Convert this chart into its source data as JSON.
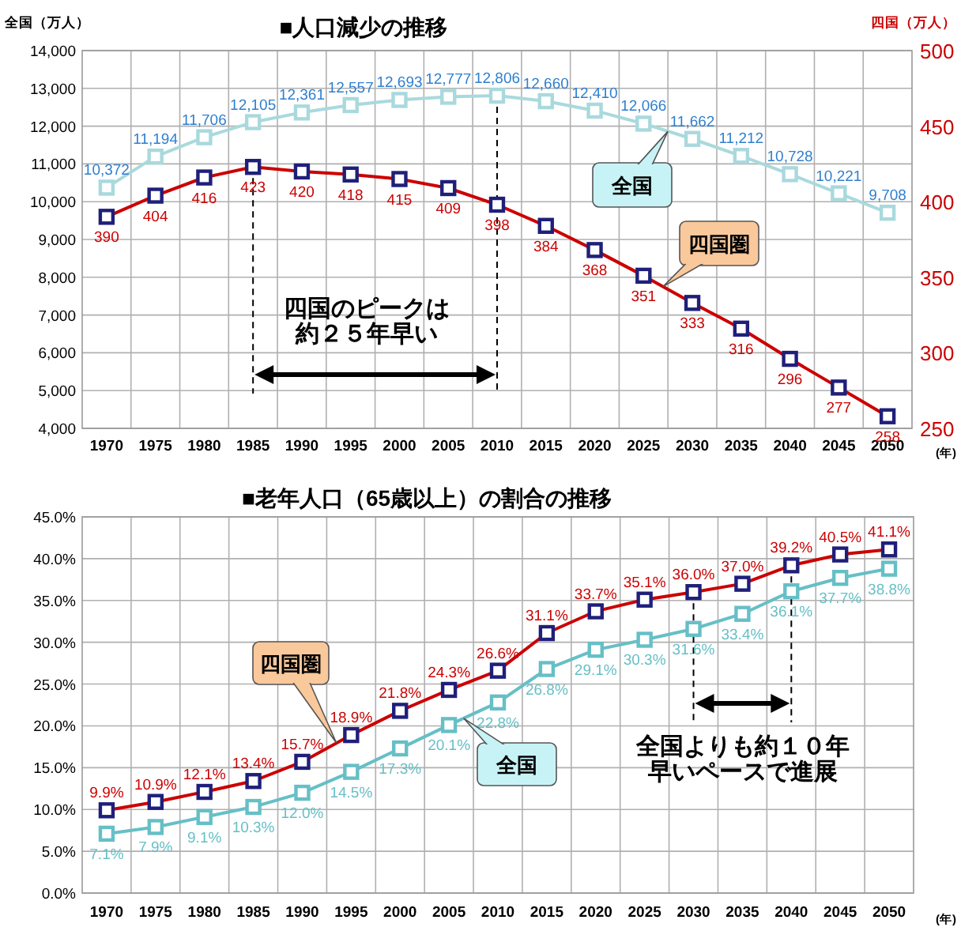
{
  "chart_data": [
    {
      "type": "line",
      "title": "■人口減少の推移",
      "ylabel": "全国（万人）",
      "y2label": "四国（万人）",
      "xlabel": "(年)",
      "categories": [
        "1970",
        "1975",
        "1980",
        "1985",
        "1990",
        "1995",
        "2000",
        "2005",
        "2010",
        "2015",
        "2020",
        "2025",
        "2030",
        "2035",
        "2040",
        "2045",
        "2050"
      ],
      "ylim": [
        4000,
        14000
      ],
      "yticks": [
        {
          "value": 4000,
          "label": "4,000"
        },
        {
          "value": 5000,
          "label": "5,000"
        },
        {
          "value": 6000,
          "label": "6,000"
        },
        {
          "value": 7000,
          "label": "7,000"
        },
        {
          "value": 8000,
          "label": "8,000"
        },
        {
          "value": 9000,
          "label": "9,000"
        },
        {
          "value": 10000,
          "label": "10,000"
        },
        {
          "value": 11000,
          "label": "11,000"
        },
        {
          "value": 12000,
          "label": "12,000"
        },
        {
          "value": 13000,
          "label": "13,000"
        },
        {
          "value": 14000,
          "label": "14,000"
        }
      ],
      "y2lim": [
        250,
        500
      ],
      "y2ticks": [
        250,
        300,
        350,
        400,
        450,
        500
      ],
      "grid": true,
      "marker": "square",
      "series": [
        {
          "name": "全国",
          "color": "#a9d9dd",
          "values": [
            10372,
            11194,
            11706,
            12105,
            12361,
            12557,
            12693,
            12777,
            12806,
            12660,
            12410,
            12066,
            11662,
            11212,
            10728,
            10221,
            9708
          ],
          "value_labels": [
            "10,372",
            "11,194",
            "11,706",
            "12,105",
            "12,361",
            "12,557",
            "12,693",
            "12,777",
            "12,806",
            "12,660",
            "12,410",
            "12,066",
            "11,662",
            "11,212",
            "10,728",
            "10,221",
            "9,708"
          ]
        },
        {
          "name": "四国圏",
          "color": "#cc0000",
          "axis": "y2",
          "values": [
            390,
            404,
            416,
            423,
            420,
            418,
            415,
            409,
            398,
            384,
            368,
            351,
            333,
            316,
            296,
            277,
            258
          ],
          "value_labels": [
            "390",
            "404",
            "416",
            "423",
            "420",
            "418",
            "415",
            "409",
            "398",
            "384",
            "368",
            "351",
            "333",
            "316",
            "296",
            "277",
            "258"
          ]
        }
      ],
      "ref_lines": [
        {
          "axis": "x",
          "value": "1985",
          "color": "#000000",
          "line_style": "dashed"
        },
        {
          "axis": "x",
          "value": "2010",
          "color": "#000000",
          "line_style": "dashed"
        }
      ],
      "annotations": [
        "四国のピークは",
        "約２５年早い"
      ]
    },
    {
      "type": "line",
      "title": "■老年人口（65歳以上）の割合の推移",
      "xlabel": "(年)",
      "categories": [
        "1970",
        "1975",
        "1980",
        "1985",
        "1990",
        "1995",
        "2000",
        "2005",
        "2010",
        "2015",
        "2020",
        "2025",
        "2030",
        "2035",
        "2040",
        "2045",
        "2050"
      ],
      "ylim": [
        0,
        45
      ],
      "yticks": [
        {
          "value": 0,
          "label": "0.0%"
        },
        {
          "value": 5,
          "label": "5.0%"
        },
        {
          "value": 10,
          "label": "10.0%"
        },
        {
          "value": 15,
          "label": "15.0%"
        },
        {
          "value": 20,
          "label": "20.0%"
        },
        {
          "value": 25,
          "label": "25.0%"
        },
        {
          "value": 30,
          "label": "30.0%"
        },
        {
          "value": 35,
          "label": "35.0%"
        },
        {
          "value": 40,
          "label": "40.0%"
        },
        {
          "value": 45,
          "label": "45.0%"
        }
      ],
      "grid": true,
      "marker": "square",
      "series": [
        {
          "name": "全国",
          "color": "#66bfc6",
          "values": [
            7.1,
            7.9,
            9.1,
            10.3,
            12.0,
            14.5,
            17.3,
            20.1,
            22.8,
            26.8,
            29.1,
            30.3,
            31.6,
            33.4,
            36.1,
            37.7,
            38.8
          ],
          "value_labels": [
            "7.1%",
            "7.9%",
            "9.1%",
            "10.3%",
            "12.0%",
            "14.5%",
            "17.3%",
            "20.1%",
            "22.8%",
            "26.8%",
            "29.1%",
            "30.3%",
            "31.6%",
            "33.4%",
            "36.1%",
            "37.7%",
            "38.8%"
          ]
        },
        {
          "name": "四国圏",
          "color": "#cc0000",
          "values": [
            9.9,
            10.9,
            12.1,
            13.4,
            15.7,
            18.9,
            21.8,
            24.3,
            26.6,
            31.1,
            33.7,
            35.1,
            36.0,
            37.0,
            39.2,
            40.5,
            41.1
          ],
          "value_labels": [
            "9.9%",
            "10.9%",
            "12.1%",
            "13.4%",
            "15.7%",
            "18.9%",
            "21.8%",
            "24.3%",
            "26.6%",
            "31.1%",
            "33.7%",
            "35.1%",
            "36.0%",
            "37.0%",
            "39.2%",
            "40.5%",
            "41.1%"
          ]
        }
      ],
      "ref_lines": [
        {
          "axis": "x",
          "value": "2030",
          "color": "#000000",
          "line_style": "dashed"
        },
        {
          "axis": "x",
          "value": "2040",
          "color": "#000000",
          "line_style": "dashed"
        }
      ],
      "annotations": [
        "全国よりも約１０年",
        "早いペースで進展"
      ]
    }
  ]
}
